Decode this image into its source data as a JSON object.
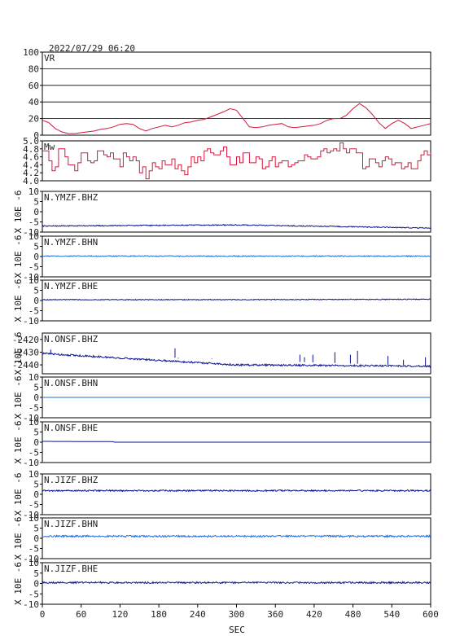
{
  "header": {
    "timestamp": "2022/07/29 06:20"
  },
  "colors": {
    "vr": "#d4183c",
    "mw": "#d4183c",
    "dark_trace": "#0b1590",
    "light_trace": "#1f6fd6",
    "grid": "#000000"
  },
  "chart_data": [
    {
      "type": "line",
      "title": "VR",
      "ylim": [
        0,
        100
      ],
      "yticks": [
        0,
        20,
        40,
        60,
        80,
        100
      ],
      "grid": true,
      "series": [
        {
          "x": [
            0,
            10,
            20,
            30,
            40,
            50,
            60,
            70,
            80,
            90,
            100,
            110,
            120,
            130,
            140,
            150,
            160,
            170,
            180,
            190,
            200,
            210,
            220,
            230,
            240,
            250,
            260,
            270,
            280,
            290,
            300,
            310,
            320,
            330,
            340,
            350,
            360,
            370,
            380,
            390,
            400,
            410,
            420,
            430,
            440,
            450,
            460,
            470,
            480,
            490,
            500,
            510,
            520,
            530,
            540,
            550,
            560,
            570,
            580,
            590,
            600
          ],
          "values": [
            18,
            15,
            8,
            4,
            2,
            2,
            3,
            4,
            5,
            7,
            8,
            10,
            13,
            14,
            13,
            8,
            5,
            8,
            10,
            12,
            10,
            12,
            15,
            16,
            18,
            19,
            22,
            25,
            28,
            32,
            30,
            20,
            10,
            9,
            10,
            12,
            13,
            14,
            10,
            9,
            10,
            11,
            12,
            14,
            18,
            20,
            20,
            24,
            32,
            38,
            33,
            25,
            15,
            8,
            14,
            18,
            14,
            8,
            10,
            12,
            14
          ]
        }
      ]
    },
    {
      "type": "line",
      "title": "Mw",
      "ylim": [
        4.0,
        5.0
      ],
      "yticks": [
        4.0,
        4.2,
        4.4,
        4.6,
        4.8,
        5.0
      ],
      "ytick_labels": [
        "4.0",
        "4.2",
        "4.4",
        "4.6",
        "4.8",
        "5.0"
      ],
      "grid": false,
      "series": [
        {
          "x": [
            0,
            5,
            10,
            15,
            20,
            25,
            30,
            35,
            40,
            45,
            50,
            55,
            60,
            65,
            70,
            75,
            80,
            85,
            90,
            95,
            100,
            105,
            110,
            115,
            120,
            125,
            130,
            135,
            140,
            145,
            150,
            155,
            160,
            165,
            170,
            175,
            180,
            185,
            190,
            195,
            200,
            205,
            210,
            215,
            220,
            225,
            230,
            235,
            240,
            245,
            250,
            255,
            260,
            265,
            270,
            275,
            280,
            285,
            290,
            295,
            300,
            305,
            310,
            315,
            320,
            325,
            330,
            335,
            340,
            345,
            350,
            355,
            360,
            365,
            370,
            375,
            380,
            385,
            390,
            395,
            400,
            405,
            410,
            415,
            420,
            425,
            430,
            435,
            440,
            445,
            450,
            455,
            460,
            465,
            470,
            475,
            480,
            485,
            490,
            495,
            500,
            505,
            510,
            515,
            520,
            525,
            530,
            535,
            540,
            545,
            550,
            555,
            560,
            565,
            570,
            575,
            580,
            585,
            590,
            595,
            600
          ],
          "values": [
            4.75,
            4.75,
            4.5,
            4.25,
            4.35,
            4.8,
            4.8,
            4.6,
            4.4,
            4.4,
            4.25,
            4.45,
            4.7,
            4.7,
            4.5,
            4.45,
            4.5,
            4.75,
            4.75,
            4.65,
            4.6,
            4.7,
            4.55,
            4.55,
            4.35,
            4.7,
            4.6,
            4.5,
            4.6,
            4.5,
            4.2,
            4.35,
            4.05,
            4.25,
            4.45,
            4.35,
            4.3,
            4.5,
            4.4,
            4.4,
            4.55,
            4.3,
            4.4,
            4.25,
            4.15,
            4.35,
            4.6,
            4.45,
            4.6,
            4.5,
            4.75,
            4.8,
            4.7,
            4.65,
            4.65,
            4.75,
            4.85,
            4.6,
            4.4,
            4.4,
            4.6,
            4.45,
            4.7,
            4.7,
            4.45,
            4.45,
            4.6,
            4.55,
            4.3,
            4.35,
            4.5,
            4.6,
            4.35,
            4.45,
            4.5,
            4.5,
            4.35,
            4.4,
            4.45,
            4.5,
            4.5,
            4.65,
            4.6,
            4.55,
            4.55,
            4.6,
            4.75,
            4.8,
            4.7,
            4.75,
            4.8,
            4.75,
            4.95,
            4.8,
            4.7,
            4.8,
            4.8,
            4.7,
            4.7,
            4.3,
            4.35,
            4.55,
            4.55,
            4.45,
            4.35,
            4.5,
            4.6,
            4.55,
            4.4,
            4.45,
            4.45,
            4.3,
            4.35,
            4.45,
            4.3,
            4.3,
            4.5,
            4.65,
            4.75,
            4.65,
            4.7
          ]
        }
      ]
    },
    {
      "type": "line",
      "title": "N.YMZF.BHZ",
      "ylabel": "X 10E -6",
      "ylim": [
        -10,
        10
      ],
      "yticks": [
        -10,
        -5,
        0,
        5,
        10
      ],
      "trace": {
        "color": "dark",
        "base_start": -7,
        "base_mid": -6.5,
        "base_end": -8,
        "noise": 0.25
      }
    },
    {
      "type": "line",
      "title": "N.YMZF.BHN",
      "ylabel": "X 10E -6",
      "ylim": [
        -10,
        10
      ],
      "yticks": [
        -10,
        -5,
        0,
        5,
        10
      ],
      "trace": {
        "color": "light",
        "base_start": 0.2,
        "base_mid": 0.2,
        "base_end": 0.2,
        "noise": 0.25
      }
    },
    {
      "type": "line",
      "title": "N.YMZF.BHE",
      "ylabel": "X 10E -6",
      "ylim": [
        -10,
        10
      ],
      "yticks": [
        -10,
        -5,
        0,
        5,
        10
      ],
      "trace": {
        "color": "dark",
        "base_start": 0.4,
        "base_mid": 0.4,
        "base_end": 0.6,
        "noise": 0.2
      }
    },
    {
      "type": "line",
      "title": "N.ONSF.BHZ",
      "ylabel": "X 10E -6",
      "ylim": [
        -2447,
        -2415
      ],
      "yticks": [
        -2440,
        -2430,
        -2420
      ],
      "trace": {
        "color": "dark",
        "base_start": -2431,
        "base_mid": -2440,
        "base_end": -2441,
        "noise": 0.7,
        "spikes": [
          [
            13,
            -2428
          ],
          [
            205,
            -2427
          ],
          [
            210,
            -2435
          ],
          [
            262,
            -2435
          ],
          [
            398,
            -2432
          ],
          [
            405,
            -2434
          ],
          [
            418,
            -2432
          ],
          [
            452,
            -2430
          ],
          [
            476,
            -2432
          ],
          [
            487,
            -2429
          ],
          [
            534,
            -2433
          ],
          [
            558,
            -2436
          ],
          [
            592,
            -2434
          ]
        ]
      }
    },
    {
      "type": "line",
      "title": "N.ONSF.BHN",
      "ylabel": "X 10E -6",
      "ylim": [
        -10,
        10
      ],
      "yticks": [
        -10,
        -5,
        0,
        5,
        10
      ],
      "trace": {
        "color": "light",
        "base_start": 0,
        "base_mid": 0,
        "base_end": 0,
        "noise": 0
      }
    },
    {
      "type": "line",
      "title": "N.ONSF.BHE",
      "ylabel": "X 10E -6",
      "ylim": [
        -10,
        10
      ],
      "yticks": [
        -10,
        -5,
        0,
        5,
        10
      ],
      "trace": {
        "color": "dark",
        "base_start": 0.4,
        "base_mid": 0,
        "base_end": 0,
        "noise": 0
      }
    },
    {
      "type": "line",
      "title": "N.JIZF.BHZ",
      "ylabel": "X 10E -6",
      "ylim": [
        -10,
        10
      ],
      "yticks": [
        -10,
        -5,
        0,
        5,
        10
      ],
      "trace": {
        "color": "dark",
        "base_start": 1.8,
        "base_mid": 1.8,
        "base_end": 1.8,
        "noise": 0.35
      }
    },
    {
      "type": "line",
      "title": "N.JIZF.BHN",
      "ylabel": "X 10E -6",
      "ylim": [
        -10,
        10
      ],
      "yticks": [
        -10,
        -5,
        0,
        5,
        10
      ],
      "trace": {
        "color": "light",
        "base_start": 1,
        "base_mid": 1,
        "base_end": 1,
        "noise": 0.45
      }
    },
    {
      "type": "line",
      "title": "N.JIZF.BHE",
      "ylabel": "X 10E -6",
      "ylim": [
        -10,
        10
      ],
      "yticks": [
        -10,
        -5,
        0,
        5,
        10
      ],
      "trace": {
        "color": "dark",
        "base_start": 0.4,
        "base_mid": 0.4,
        "base_end": 0.4,
        "noise": 0.4
      }
    }
  ],
  "x_axis": {
    "label": "SEC",
    "range": [
      0,
      600
    ],
    "ticks": [
      0,
      60,
      120,
      180,
      240,
      300,
      360,
      420,
      480,
      540,
      600
    ]
  }
}
